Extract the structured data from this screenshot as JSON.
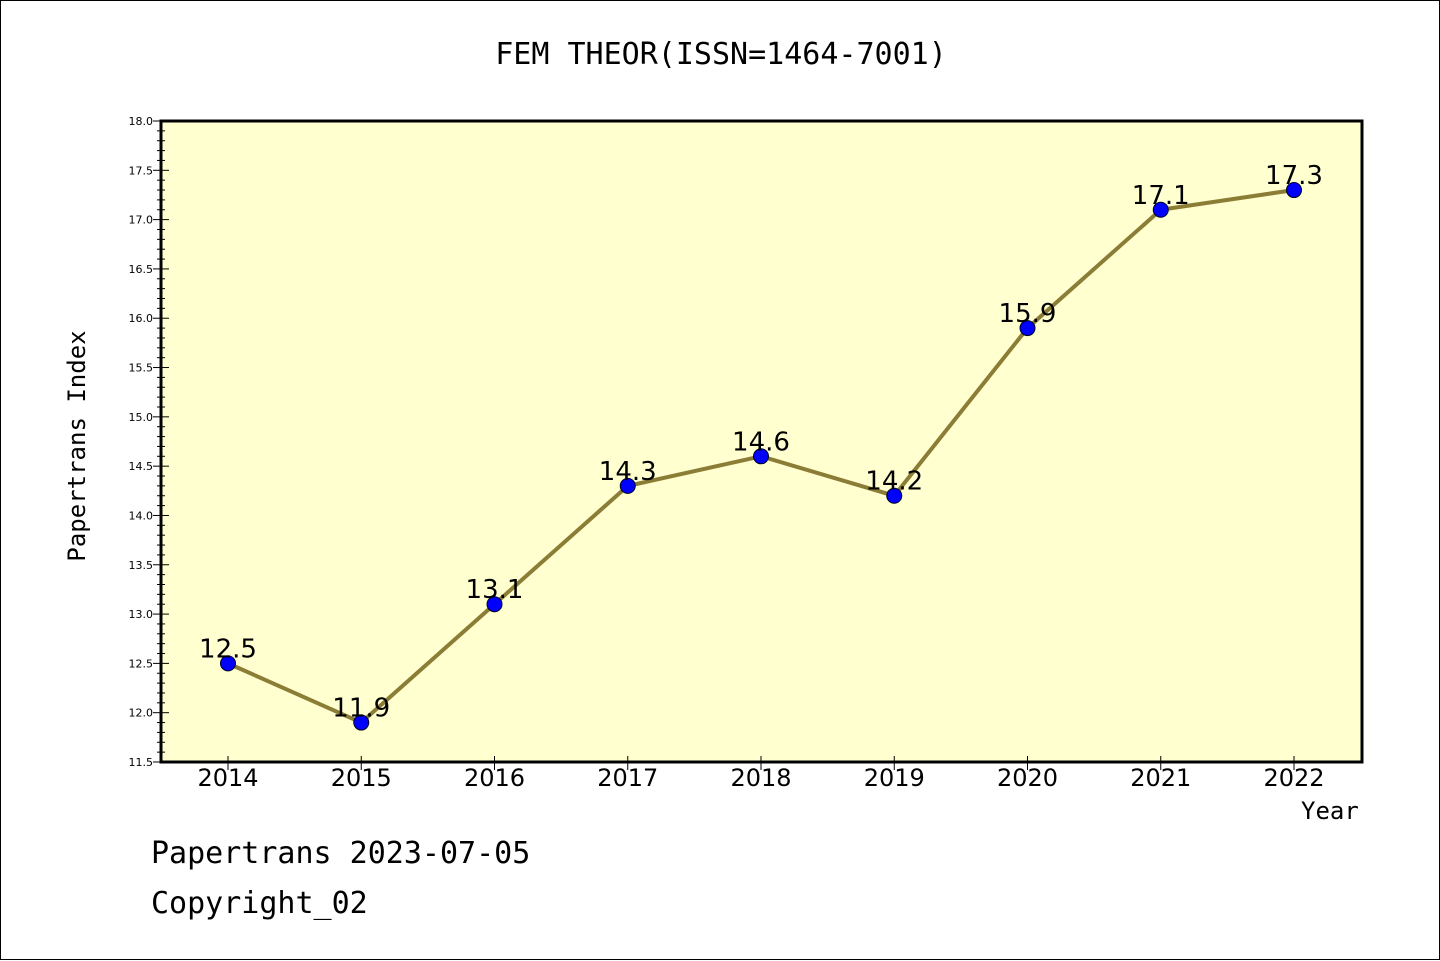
{
  "title": "FEM THEOR(ISSN=1464-7001)",
  "footer": {
    "line1": "Papertrans 2023-07-05",
    "line2": "Copyright_02"
  },
  "colors": {
    "plot_bg": "#ffffd0",
    "line": "#8b7d35",
    "marker": "#0000ff"
  },
  "chart_data": {
    "type": "line",
    "xlabel": "Year",
    "ylabel": "Papertrans Index",
    "categories": [
      "2014",
      "2015",
      "2016",
      "2017",
      "2018",
      "2019",
      "2020",
      "2021",
      "2022"
    ],
    "values": [
      12.5,
      11.9,
      13.1,
      14.3,
      14.6,
      14.2,
      15.9,
      17.1,
      17.3
    ],
    "data_labels": [
      "12.5",
      "11.9",
      "13.1",
      "14.3",
      "14.6",
      "14.2",
      "15.9",
      "17.1",
      "17.3"
    ],
    "ylim": [
      11.5,
      18.0
    ],
    "yticks": [
      "11.5",
      "12.0",
      "12.5",
      "13.0",
      "13.5",
      "14.0",
      "14.5",
      "15.0",
      "15.5",
      "16.0",
      "16.5",
      "17.0",
      "17.5",
      "18.0"
    ],
    "grid": false,
    "legend": "none"
  }
}
